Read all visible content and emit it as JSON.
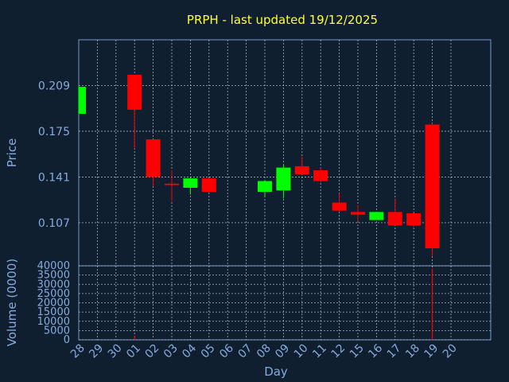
{
  "title": "PRPH - last updated 19/12/2025",
  "chart_data": [
    {
      "type": "candlestick",
      "title": "PRPH - last updated 19/12/2025",
      "xlabel": "Day",
      "ylabel": "Price",
      "ylim": [
        0.075,
        0.243
      ],
      "yticks": [
        "0.209",
        "0.175",
        "0.141",
        "0.107"
      ],
      "ytick_values": [
        0.209,
        0.175,
        0.141,
        0.107
      ],
      "categories": [
        "28",
        "29",
        "30",
        "01",
        "02",
        "03",
        "04",
        "05",
        "06",
        "07",
        "08",
        "09",
        "10",
        "11",
        "12",
        "15",
        "16",
        "17",
        "18",
        "19",
        "20"
      ],
      "grid": true,
      "candles": [
        {
          "x": "28",
          "open": 0.188,
          "close": 0.208,
          "high": 0.209,
          "low": 0.188,
          "color": "#00ff00"
        },
        {
          "x": "01",
          "open": 0.217,
          "close": 0.191,
          "high": 0.217,
          "low": 0.162,
          "color": "#ff0000"
        },
        {
          "x": "02",
          "open": 0.169,
          "close": 0.141,
          "high": 0.169,
          "low": 0.134,
          "color": "#ff0000"
        },
        {
          "x": "03",
          "open": 0.136,
          "close": 0.135,
          "high": 0.146,
          "low": 0.123,
          "color": "#ff0000"
        },
        {
          "x": "04",
          "open": 0.133,
          "close": 0.14,
          "high": 0.14,
          "low": 0.128,
          "color": "#00ff00"
        },
        {
          "x": "05",
          "open": 0.14,
          "close": 0.13,
          "high": 0.14,
          "low": 0.13,
          "color": "#ff0000"
        },
        {
          "x": "08",
          "open": 0.13,
          "close": 0.138,
          "high": 0.138,
          "low": 0.126,
          "color": "#00ff00"
        },
        {
          "x": "09",
          "open": 0.131,
          "close": 0.148,
          "high": 0.15,
          "low": 0.125,
          "color": "#00ff00"
        },
        {
          "x": "10",
          "open": 0.149,
          "close": 0.143,
          "high": 0.156,
          "low": 0.143,
          "color": "#ff0000"
        },
        {
          "x": "11",
          "open": 0.146,
          "close": 0.138,
          "high": 0.148,
          "low": 0.137,
          "color": "#ff0000"
        },
        {
          "x": "12",
          "open": 0.122,
          "close": 0.116,
          "high": 0.129,
          "low": 0.115,
          "color": "#ff0000"
        },
        {
          "x": "15",
          "open": 0.115,
          "close": 0.113,
          "high": 0.12,
          "low": 0.108,
          "color": "#ff0000"
        },
        {
          "x": "16",
          "open": 0.109,
          "close": 0.115,
          "high": 0.115,
          "low": 0.109,
          "color": "#00ff00"
        },
        {
          "x": "17",
          "open": 0.115,
          "close": 0.105,
          "high": 0.125,
          "low": 0.105,
          "color": "#ff0000"
        },
        {
          "x": "18",
          "open": 0.114,
          "close": 0.105,
          "high": 0.114,
          "low": 0.104,
          "color": "#ff0000"
        },
        {
          "x": "19",
          "open": 0.18,
          "close": 0.088,
          "high": 0.181,
          "low": 0.082,
          "color": "#ff0000"
        }
      ]
    },
    {
      "type": "bar",
      "xlabel": "Day",
      "ylabel": "Volume (0000)",
      "ylim": [
        0,
        40000
      ],
      "yticks": [
        "40000",
        "35000",
        "30000",
        "25000",
        "20000",
        "15000",
        "10000",
        "5000",
        "0"
      ],
      "ytick_values": [
        40000,
        35000,
        30000,
        25000,
        20000,
        15000,
        10000,
        5000,
        0
      ],
      "categories": [
        "28",
        "29",
        "30",
        "01",
        "02",
        "03",
        "04",
        "05",
        "06",
        "07",
        "08",
        "09",
        "10",
        "11",
        "12",
        "15",
        "16",
        "17",
        "18",
        "19",
        "20"
      ],
      "grid": true,
      "bars": [
        {
          "x": "01",
          "value": 2000,
          "color": "#ff0000"
        },
        {
          "x": "02",
          "value": 400,
          "color": "#ff0000"
        },
        {
          "x": "19",
          "value": 38500,
          "color": "#ff0000"
        }
      ]
    }
  ]
}
